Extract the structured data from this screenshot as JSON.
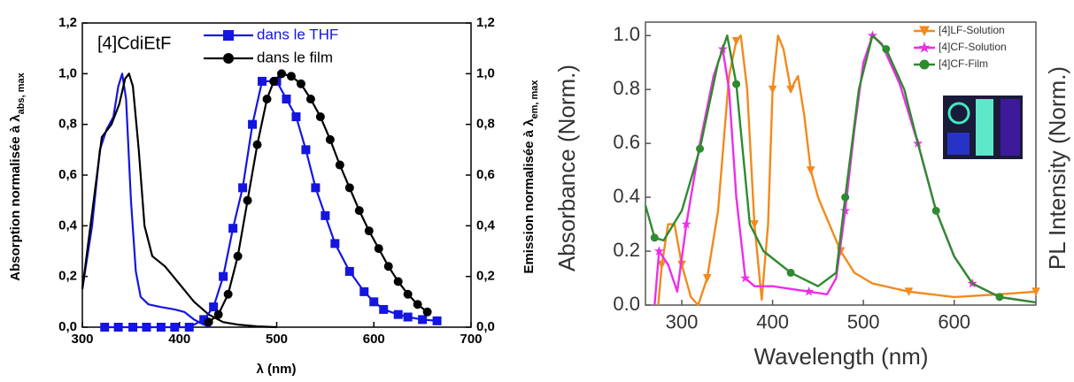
{
  "chart_data": [
    {
      "type": "line",
      "annotation": "[4]CdiEtF",
      "x_label": "λ (nm)",
      "y_label": "Absorption normalisée à λ",
      "y_label_sub": "abs, max",
      "y2_label": "Emission normalisée à λ",
      "y2_label_sub": "em, max",
      "xlim": [
        300,
        700
      ],
      "xticks": [
        300,
        400,
        500,
        600,
        700
      ],
      "ylim": [
        0,
        1.2
      ],
      "yticks": [
        {
          "value": 0,
          "label": "0,0"
        },
        {
          "value": 0.2,
          "label": "0,2"
        },
        {
          "value": 0.4,
          "label": "0,4"
        },
        {
          "value": 0.6,
          "label": "0,6"
        },
        {
          "value": 0.8,
          "label": "0,8"
        },
        {
          "value": 1.0,
          "label": "1,0"
        },
        {
          "value": 1.2,
          "label": "1,2"
        }
      ],
      "y2lim": [
        0,
        1.2
      ],
      "y2ticks": [
        {
          "value": 0,
          "label": "0,0"
        },
        {
          "value": 0.2,
          "label": "0,2"
        },
        {
          "value": 0.4,
          "label": "0,4"
        },
        {
          "value": 0.6,
          "label": "0,6"
        },
        {
          "value": 0.8,
          "label": "0,8"
        },
        {
          "value": 1.0,
          "label": "1,0"
        },
        {
          "value": 1.2,
          "label": "1,2"
        }
      ],
      "legend": "upper right",
      "series": [
        {
          "color": "#1515e0",
          "x": [
            300,
            310,
            318,
            325,
            332,
            337,
            341,
            345,
            350,
            355,
            360,
            368,
            380,
            395,
            405,
            415,
            425,
            432
          ],
          "values": [
            0.15,
            0.4,
            0.7,
            0.78,
            0.83,
            0.95,
            1.0,
            0.9,
            0.5,
            0.22,
            0.12,
            0.09,
            0.08,
            0.07,
            0.06,
            0.03,
            0.01,
            0
          ]
        },
        {
          "color": "#000000",
          "x": [
            300,
            310,
            320,
            330,
            338,
            344,
            348,
            352,
            358,
            364,
            372,
            385,
            400,
            415,
            430,
            445,
            460,
            480,
            500
          ],
          "values": [
            0.15,
            0.45,
            0.75,
            0.8,
            0.88,
            0.98,
            1.0,
            0.95,
            0.7,
            0.4,
            0.28,
            0.24,
            0.17,
            0.1,
            0.05,
            0.02,
            0.01,
            0.003,
            0
          ]
        },
        {
          "name": "dans le THF",
          "color": "#1515e0",
          "axis": "y2",
          "marker": "square",
          "x": [
            323,
            337,
            352,
            366,
            381,
            395,
            410,
            425,
            435,
            445,
            455,
            465,
            475,
            485,
            500,
            510,
            520,
            530,
            540,
            550,
            560,
            575,
            590,
            600,
            610,
            625,
            635,
            650,
            665
          ],
          "values": [
            0,
            0,
            0,
            0,
            0,
            0,
            0,
            0.03,
            0.08,
            0.2,
            0.39,
            0.55,
            0.8,
            0.97,
            0.97,
            0.9,
            0.83,
            0.7,
            0.55,
            0.44,
            0.33,
            0.22,
            0.14,
            0.1,
            0.07,
            0.05,
            0.04,
            0.03,
            0.025
          ]
        },
        {
          "name": "dans le film",
          "color": "#000000",
          "axis": "y2",
          "marker": "circle",
          "x": [
            430,
            440,
            450,
            460,
            470,
            480,
            490,
            497,
            505,
            515,
            525,
            535,
            545,
            555,
            565,
            575,
            585,
            595,
            605,
            615,
            625,
            635,
            645,
            655
          ],
          "values": [
            0.02,
            0.05,
            0.13,
            0.28,
            0.5,
            0.72,
            0.9,
            0.97,
            1.0,
            0.99,
            0.96,
            0.9,
            0.83,
            0.74,
            0.64,
            0.55,
            0.46,
            0.38,
            0.31,
            0.24,
            0.18,
            0.13,
            0.09,
            0.06
          ]
        }
      ]
    },
    {
      "type": "line",
      "x_label": "Wavelength (nm)",
      "y_label": "Absorbance (Norm.)",
      "y2_label": "PL Intensity (Norm.)",
      "xlim": [
        260,
        690
      ],
      "xticks": [
        300,
        400,
        500,
        600
      ],
      "ylim": [
        0,
        1.05
      ],
      "yticks": [
        {
          "value": 0,
          "label": "0.0"
        },
        0.2,
        0.4,
        0.6,
        0.8,
        {
          "value": 1,
          "label": "1.0"
        }
      ],
      "legend": "upper right",
      "series": [
        {
          "name": "[4]LF-Solution",
          "color": "#f28a1c",
          "marker": "triangle",
          "x": [
            274,
            278,
            285,
            292,
            300,
            310,
            318,
            328,
            340,
            352,
            360,
            365,
            372,
            380,
            388,
            395,
            400,
            406,
            412,
            420,
            428,
            435,
            442,
            450,
            460,
            475,
            490,
            510,
            550,
            600,
            650,
            690
          ],
          "values": [
            0,
            0.15,
            0.3,
            0.3,
            0.15,
            0.03,
            0,
            0.1,
            0.35,
            0.85,
            0.98,
            1.0,
            0.8,
            0.3,
            0.02,
            0.3,
            0.8,
            1.0,
            0.95,
            0.8,
            0.85,
            0.7,
            0.5,
            0.4,
            0.32,
            0.2,
            0.12,
            0.08,
            0.05,
            0.03,
            0.04,
            0.05
          ]
        },
        {
          "name": "[4]CF-Solution",
          "color": "#ee2ee8",
          "marker": "star",
          "x": [
            270,
            275,
            285,
            295,
            305,
            320,
            335,
            345,
            352,
            360,
            370,
            380,
            400,
            440,
            460,
            470,
            480,
            490,
            500,
            510,
            520,
            540,
            560,
            580,
            600,
            620,
            650,
            690
          ],
          "values": [
            0,
            0.2,
            0.15,
            0.05,
            0.3,
            0.6,
            0.85,
            0.95,
            0.8,
            0.4,
            0.1,
            0.07,
            0.07,
            0.05,
            0.04,
            0.1,
            0.35,
            0.65,
            0.9,
            1.0,
            0.97,
            0.82,
            0.6,
            0.35,
            0.18,
            0.08,
            0.03,
            0.01
          ]
        },
        {
          "name": "[4]CF-Film",
          "color": "#2e8b2e",
          "marker": "circle",
          "x": [
            260,
            270,
            280,
            300,
            320,
            340,
            350,
            360,
            375,
            390,
            420,
            450,
            470,
            480,
            495,
            510,
            525,
            545,
            560,
            580,
            600,
            620,
            650,
            690
          ],
          "values": [
            0.37,
            0.25,
            0.24,
            0.35,
            0.58,
            0.9,
            1.0,
            0.82,
            0.3,
            0.2,
            0.12,
            0.07,
            0.12,
            0.4,
            0.8,
            1.0,
            0.95,
            0.8,
            0.6,
            0.35,
            0.18,
            0.08,
            0.03,
            0.01
          ]
        }
      ]
    }
  ]
}
